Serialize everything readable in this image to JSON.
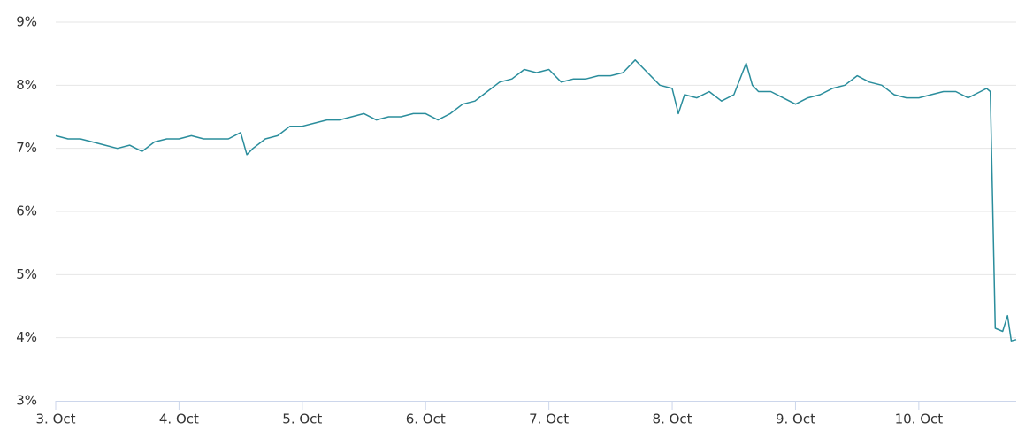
{
  "chart_data": {
    "type": "line",
    "x": [
      3.0,
      3.1,
      3.2,
      3.3,
      3.4,
      3.5,
      3.6,
      3.7,
      3.8,
      3.9,
      4.0,
      4.1,
      4.2,
      4.3,
      4.4,
      4.5,
      4.55,
      4.6,
      4.7,
      4.8,
      4.9,
      5.0,
      5.1,
      5.2,
      5.3,
      5.4,
      5.5,
      5.6,
      5.7,
      5.8,
      5.9,
      6.0,
      6.1,
      6.2,
      6.3,
      6.4,
      6.5,
      6.6,
      6.7,
      6.8,
      6.9,
      7.0,
      7.1,
      7.2,
      7.3,
      7.4,
      7.5,
      7.6,
      7.7,
      7.8,
      7.9,
      8.0,
      8.05,
      8.1,
      8.2,
      8.3,
      8.4,
      8.5,
      8.6,
      8.65,
      8.7,
      8.8,
      8.9,
      9.0,
      9.1,
      9.2,
      9.3,
      9.4,
      9.5,
      9.6,
      9.7,
      9.8,
      9.9,
      10.0,
      10.1,
      10.2,
      10.3,
      10.4,
      10.5,
      10.55,
      10.58,
      10.62,
      10.68,
      10.72,
      10.75,
      10.79
    ],
    "series": [
      {
        "color": "#2a8d9c",
        "values": [
          7.2,
          7.15,
          7.15,
          7.1,
          7.05,
          7.0,
          7.05,
          6.95,
          7.1,
          7.15,
          7.15,
          7.2,
          7.15,
          7.15,
          7.15,
          7.25,
          6.9,
          7.0,
          7.15,
          7.2,
          7.35,
          7.35,
          7.4,
          7.45,
          7.45,
          7.5,
          7.55,
          7.45,
          7.5,
          7.5,
          7.55,
          7.55,
          7.45,
          7.55,
          7.7,
          7.75,
          7.9,
          8.05,
          8.1,
          8.25,
          8.2,
          8.25,
          8.05,
          8.1,
          8.1,
          8.15,
          8.15,
          8.2,
          8.4,
          8.2,
          8.0,
          7.95,
          7.55,
          7.85,
          7.8,
          7.9,
          7.75,
          7.85,
          8.35,
          8.0,
          7.9,
          7.9,
          7.8,
          7.7,
          7.8,
          7.85,
          7.95,
          8.0,
          8.15,
          8.05,
          8.0,
          7.85,
          7.8,
          7.8,
          7.85,
          7.9,
          7.9,
          7.8,
          7.9,
          7.95,
          7.9,
          4.15,
          4.1,
          4.35,
          3.95,
          3.97
        ]
      }
    ],
    "xlim": [
      3,
      10.79
    ],
    "xticks": [
      {
        "value": 3,
        "label": "3. Oct"
      },
      {
        "value": 4,
        "label": "4. Oct"
      },
      {
        "value": 5,
        "label": "5. Oct"
      },
      {
        "value": 6,
        "label": "6. Oct"
      },
      {
        "value": 7,
        "label": "7. Oct"
      },
      {
        "value": 8,
        "label": "8. Oct"
      },
      {
        "value": 9,
        "label": "9. Oct"
      },
      {
        "value": 10,
        "label": "10. Oct"
      }
    ],
    "ylim": [
      3,
      9
    ],
    "yticks": [
      {
        "value": 3,
        "label": "3%"
      },
      {
        "value": 4,
        "label": "4%"
      },
      {
        "value": 5,
        "label": "5%"
      },
      {
        "value": 6,
        "label": "6%"
      },
      {
        "value": 7,
        "label": "7%"
      },
      {
        "value": 8,
        "label": "8%"
      },
      {
        "value": 9,
        "label": "9%"
      }
    ],
    "grid": true
  }
}
